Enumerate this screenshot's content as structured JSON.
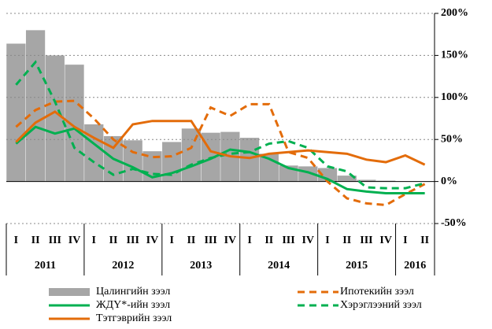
{
  "chart_data": {
    "type": "combo",
    "categories": [
      "I",
      "II",
      "III",
      "IV",
      "I",
      "II",
      "III",
      "IV",
      "I",
      "II",
      "III",
      "IV",
      "I",
      "II",
      "III",
      "IV",
      "I",
      "II",
      "III",
      "IV",
      "I",
      "II"
    ],
    "years": [
      "2011",
      "2012",
      "2013",
      "2014",
      "2015",
      "2016"
    ],
    "ylim": [
      -50,
      200
    ],
    "yticks": [
      {
        "value": -50,
        "label": "-50%"
      },
      {
        "value": 0,
        "label": "0%"
      },
      {
        "value": 50,
        "label": "50%"
      },
      {
        "value": 100,
        "label": "100%"
      },
      {
        "value": 150,
        "label": "150%"
      },
      {
        "value": 200,
        "label": "200%"
      }
    ],
    "grid": true,
    "series": [
      {
        "name": "Цалингийн зээл",
        "type": "bar",
        "color": "#a6a6a6",
        "values": [
          164,
          180,
          150,
          139,
          68,
          54,
          49,
          36,
          47,
          63,
          58,
          59,
          52,
          33,
          19,
          18,
          16,
          7,
          2,
          1,
          0,
          0
        ]
      },
      {
        "name": "Ипотекийн зээл",
        "type": "line",
        "dashed": true,
        "color": "#e36c0a",
        "values": [
          65,
          85,
          95,
          96,
          75,
          50,
          35,
          29,
          30,
          40,
          88,
          78,
          92,
          92,
          35,
          28,
          0,
          -20,
          -26,
          -28,
          -15,
          -3
        ]
      },
      {
        "name": "ЖДҮ*-ийн зээл",
        "type": "line",
        "dashed": false,
        "color": "#00b050",
        "values": [
          45,
          65,
          57,
          63,
          45,
          27,
          17,
          5,
          10,
          18,
          27,
          38,
          35,
          27,
          16,
          11,
          3,
          -9,
          -12,
          -14,
          -14,
          -14
        ]
      },
      {
        "name": "Хэрэглээний зээл",
        "type": "line",
        "dashed": true,
        "color": "#00b050",
        "values": [
          115,
          142,
          95,
          40,
          23,
          8,
          15,
          9,
          8,
          20,
          28,
          33,
          35,
          45,
          48,
          40,
          18,
          12,
          -7,
          -8,
          -8,
          -2
        ]
      },
      {
        "name": "Тэтгэврийн зээл",
        "type": "line",
        "dashed": false,
        "color": "#e36c0a",
        "values": [
          47,
          70,
          83,
          65,
          52,
          40,
          68,
          72,
          72,
          72,
          36,
          30,
          28,
          33,
          35,
          37,
          35,
          33,
          26,
          23,
          31,
          20
        ]
      }
    ]
  }
}
